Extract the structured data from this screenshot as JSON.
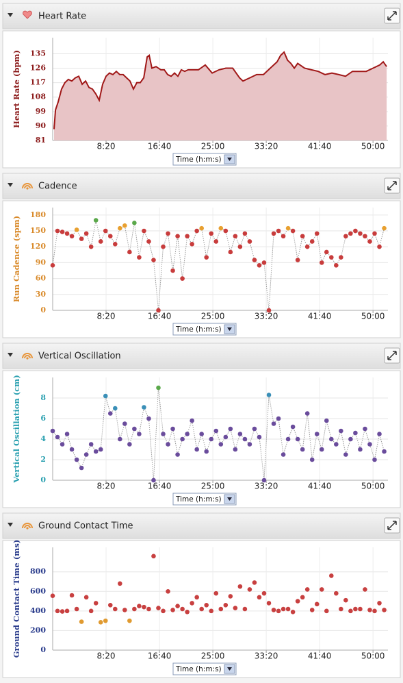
{
  "chart_data": [
    {
      "type": "area",
      "title": "Heart Rate",
      "ylabel": "Heart Rate (bpm)",
      "xlabel": "Time (h:m:s)",
      "axis_color": "#8b1a1a",
      "color": "#a01818",
      "fill_color": "#e8c4c6",
      "x": [
        13,
        26,
        51,
        83,
        115,
        147,
        179,
        212,
        244,
        276,
        308,
        340,
        372,
        404,
        436,
        468,
        500,
        532,
        564,
        596,
        628,
        660,
        692,
        724,
        756,
        788,
        820,
        853,
        885,
        904,
        929,
        968,
        1013,
        1045,
        1077,
        1109,
        1141,
        1173,
        1205,
        1237,
        1269,
        1301,
        1365,
        1429,
        1494,
        1558,
        1622,
        1686,
        1750,
        1782,
        1846,
        1910,
        1974,
        2038,
        2102,
        2135,
        2167,
        2199,
        2231,
        2263,
        2295,
        2359,
        2423,
        2487,
        2551,
        2615,
        2679,
        2743,
        2808,
        2872,
        2936,
        3000,
        3064,
        3096,
        3128
      ],
      "values": [
        88,
        100,
        105,
        113,
        117,
        119,
        118,
        120,
        121,
        116,
        118,
        114,
        113,
        110,
        106,
        116,
        121,
        123,
        122,
        124,
        122,
        122,
        120,
        118,
        113,
        117,
        117,
        120,
        133,
        134,
        126,
        127,
        125,
        125,
        122,
        121,
        123,
        121,
        125,
        124,
        125,
        125,
        125,
        128,
        123,
        125,
        126,
        126,
        120,
        118,
        120,
        122,
        122,
        126,
        130,
        134,
        136,
        131,
        129,
        126,
        129,
        126,
        125,
        124,
        122,
        123,
        122,
        121,
        124,
        124,
        124,
        126,
        128,
        130,
        127
      ],
      "xlim": [
        0,
        3140
      ],
      "ylim": [
        81,
        145
      ],
      "xticks": [
        {
          "value": 500,
          "label": "8:20"
        },
        {
          "value": 1000,
          "label": "16:40"
        },
        {
          "value": 1500,
          "label": "25:00"
        },
        {
          "value": 2000,
          "label": "33:20"
        },
        {
          "value": 2500,
          "label": "41:40"
        },
        {
          "value": 3000,
          "label": "50:00"
        }
      ],
      "yticks": [
        81,
        90,
        99,
        108,
        117,
        126,
        135
      ],
      "grid": true
    },
    {
      "type": "scatter",
      "connect": true,
      "title": "Cadence",
      "ylabel": "Run Cadence (spm)",
      "xlabel": "Time (h:m:s)",
      "axis_color": "#d98a2a",
      "x": [
        0,
        45,
        90,
        135,
        180,
        225,
        270,
        315,
        360,
        405,
        450,
        495,
        540,
        585,
        630,
        675,
        720,
        765,
        810,
        855,
        900,
        945,
        990,
        1035,
        1080,
        1125,
        1170,
        1215,
        1260,
        1305,
        1350,
        1395,
        1440,
        1485,
        1530,
        1575,
        1620,
        1665,
        1710,
        1755,
        1800,
        1845,
        1890,
        1935,
        1980,
        2025,
        2070,
        2115,
        2160,
        2205,
        2250,
        2295,
        2340,
        2385,
        2430,
        2475,
        2520,
        2565,
        2610,
        2655,
        2700,
        2745,
        2790,
        2835,
        2880,
        2925,
        2970,
        3015,
        3060,
        3105
      ],
      "values": [
        85,
        150,
        148,
        145,
        140,
        152,
        135,
        145,
        120,
        170,
        130,
        150,
        140,
        125,
        155,
        160,
        110,
        165,
        100,
        150,
        130,
        95,
        0,
        120,
        145,
        75,
        140,
        60,
        140,
        125,
        150,
        155,
        100,
        145,
        130,
        155,
        150,
        110,
        140,
        120,
        145,
        130,
        95,
        85,
        90,
        0,
        145,
        150,
        140,
        155,
        150,
        95,
        140,
        120,
        130,
        145,
        90,
        110,
        100,
        85,
        100,
        140,
        145,
        150,
        145,
        140,
        130,
        145,
        120,
        155
      ],
      "colors": [
        "#c83c3c",
        "#c83c3c",
        "#c83c3c",
        "#c83c3c",
        "#c83c3c",
        "#e8a030",
        "#c83c3c",
        "#c83c3c",
        "#c83c3c",
        "#5aa84a",
        "#c83c3c",
        "#c83c3c",
        "#c83c3c",
        "#c83c3c",
        "#e8a030",
        "#e8a030",
        "#c83c3c",
        "#5aa84a",
        "#c83c3c",
        "#c83c3c",
        "#c83c3c",
        "#c83c3c",
        "#c83c3c",
        "#c83c3c",
        "#c83c3c",
        "#c83c3c",
        "#c83c3c",
        "#c83c3c",
        "#c83c3c",
        "#c83c3c",
        "#c83c3c",
        "#e8a030",
        "#c83c3c",
        "#c83c3c",
        "#c83c3c",
        "#e8a030",
        "#c83c3c",
        "#c83c3c",
        "#c83c3c",
        "#c83c3c",
        "#c83c3c",
        "#c83c3c",
        "#c83c3c",
        "#c83c3c",
        "#c83c3c",
        "#c83c3c",
        "#c83c3c",
        "#c83c3c",
        "#c83c3c",
        "#e8a030",
        "#c83c3c",
        "#c83c3c",
        "#c83c3c",
        "#c83c3c",
        "#c83c3c",
        "#c83c3c",
        "#c83c3c",
        "#c83c3c",
        "#c83c3c",
        "#c83c3c",
        "#c83c3c",
        "#c83c3c",
        "#c83c3c",
        "#c83c3c",
        "#c83c3c",
        "#c83c3c",
        "#c83c3c",
        "#c83c3c",
        "#c83c3c",
        "#e8a030"
      ],
      "xlim": [
        0,
        3140
      ],
      "ylim": [
        0,
        194
      ],
      "xticks": [
        {
          "value": 500,
          "label": "8:20"
        },
        {
          "value": 1000,
          "label": "16:40"
        },
        {
          "value": 1500,
          "label": "25:00"
        },
        {
          "value": 2000,
          "label": "33:20"
        },
        {
          "value": 2500,
          "label": "41:40"
        },
        {
          "value": 3000,
          "label": "50:00"
        }
      ],
      "yticks": [
        0,
        30,
        60,
        90,
        120,
        150,
        180
      ],
      "grid": true
    },
    {
      "type": "scatter",
      "connect": true,
      "title": "Vertical Oscillation",
      "ylabel": "Vertical Oscillation (cm)",
      "xlabel": "Time (h:m:s)",
      "axis_color": "#2aa0b0",
      "x": [
        0,
        45,
        90,
        135,
        180,
        225,
        270,
        315,
        360,
        405,
        450,
        495,
        540,
        585,
        630,
        675,
        720,
        765,
        810,
        855,
        900,
        945,
        990,
        1035,
        1080,
        1125,
        1170,
        1215,
        1260,
        1305,
        1350,
        1395,
        1440,
        1485,
        1530,
        1575,
        1620,
        1665,
        1710,
        1755,
        1800,
        1845,
        1890,
        1935,
        1980,
        2025,
        2070,
        2115,
        2160,
        2205,
        2250,
        2295,
        2340,
        2385,
        2430,
        2475,
        2520,
        2565,
        2610,
        2655,
        2700,
        2745,
        2790,
        2835,
        2880,
        2925,
        2970,
        3015,
        3060,
        3105
      ],
      "values": [
        4.8,
        4.2,
        3.5,
        4.5,
        3.0,
        2.0,
        1.2,
        2.5,
        3.5,
        2.8,
        3.0,
        8.2,
        6.5,
        7.0,
        4.0,
        5.5,
        3.5,
        5.0,
        4.5,
        7.1,
        6.0,
        0,
        9.0,
        4.5,
        3.5,
        5.0,
        2.5,
        4.0,
        4.5,
        5.8,
        3.0,
        4.5,
        2.8,
        4.0,
        4.8,
        3.5,
        4.2,
        5.0,
        3.0,
        4.5,
        4.0,
        3.5,
        5.0,
        4.2,
        0,
        8.3,
        5.5,
        6.0,
        2.5,
        4.0,
        5.2,
        4.0,
        3.0,
        6.5,
        2.0,
        4.5,
        3.0,
        5.8,
        4.0,
        3.5,
        4.8,
        2.5,
        4.0,
        4.6,
        3.0,
        5.0,
        3.5,
        2.0,
        4.5,
        2.8
      ],
      "colors": [
        "#6a4c9c",
        "#6a4c9c",
        "#6a4c9c",
        "#6a4c9c",
        "#6a4c9c",
        "#6a4c9c",
        "#6a4c9c",
        "#6a4c9c",
        "#6a4c9c",
        "#6a4c9c",
        "#6a4c9c",
        "#3a8fb7",
        "#6a4c9c",
        "#3a8fb7",
        "#6a4c9c",
        "#6a4c9c",
        "#6a4c9c",
        "#6a4c9c",
        "#6a4c9c",
        "#3a8fb7",
        "#6a4c9c",
        "#6a4c9c",
        "#5aa84a",
        "#6a4c9c",
        "#6a4c9c",
        "#6a4c9c",
        "#6a4c9c",
        "#6a4c9c",
        "#6a4c9c",
        "#6a4c9c",
        "#6a4c9c",
        "#6a4c9c",
        "#6a4c9c",
        "#6a4c9c",
        "#6a4c9c",
        "#6a4c9c",
        "#6a4c9c",
        "#6a4c9c",
        "#6a4c9c",
        "#6a4c9c",
        "#6a4c9c",
        "#6a4c9c",
        "#6a4c9c",
        "#6a4c9c",
        "#6a4c9c",
        "#3a8fb7",
        "#6a4c9c",
        "#6a4c9c",
        "#6a4c9c",
        "#6a4c9c",
        "#6a4c9c",
        "#6a4c9c",
        "#6a4c9c",
        "#6a4c9c",
        "#6a4c9c",
        "#6a4c9c",
        "#6a4c9c",
        "#6a4c9c",
        "#6a4c9c",
        "#6a4c9c",
        "#6a4c9c",
        "#6a4c9c",
        "#6a4c9c",
        "#6a4c9c",
        "#6a4c9c",
        "#6a4c9c",
        "#6a4c9c",
        "#6a4c9c",
        "#6a4c9c",
        "#6a4c9c"
      ],
      "xlim": [
        0,
        3140
      ],
      "ylim": [
        0,
        10
      ],
      "xticks": [
        {
          "value": 500,
          "label": "8:20"
        },
        {
          "value": 1000,
          "label": "16:40"
        },
        {
          "value": 1500,
          "label": "25:00"
        },
        {
          "value": 2000,
          "label": "33:20"
        },
        {
          "value": 2500,
          "label": "41:40"
        },
        {
          "value": 3000,
          "label": "50:00"
        }
      ],
      "yticks": [
        0,
        2,
        4,
        6,
        8
      ],
      "grid": true
    },
    {
      "type": "scatter",
      "connect": false,
      "title": "Ground Contact Time",
      "ylabel": "Ground Contact Time (ms)",
      "xlabel": "Time (h:m:s)",
      "axis_color": "#2a3c8c",
      "x": [
        0,
        45,
        90,
        135,
        180,
        225,
        270,
        315,
        360,
        405,
        450,
        495,
        540,
        585,
        630,
        675,
        720,
        765,
        810,
        855,
        900,
        945,
        990,
        1035,
        1080,
        1125,
        1170,
        1215,
        1260,
        1305,
        1350,
        1395,
        1440,
        1485,
        1530,
        1575,
        1620,
        1665,
        1710,
        1755,
        1800,
        1845,
        1890,
        1935,
        1980,
        2025,
        2070,
        2115,
        2160,
        2205,
        2250,
        2295,
        2340,
        2385,
        2430,
        2475,
        2520,
        2565,
        2610,
        2655,
        2700,
        2745,
        2790,
        2835,
        2880,
        2925,
        2970,
        3015,
        3060,
        3105
      ],
      "values": [
        555,
        400,
        395,
        400,
        560,
        420,
        290,
        540,
        400,
        480,
        285,
        300,
        460,
        420,
        680,
        410,
        300,
        420,
        450,
        440,
        420,
        960,
        430,
        400,
        600,
        410,
        450,
        420,
        390,
        480,
        540,
        420,
        460,
        400,
        580,
        420,
        460,
        550,
        430,
        650,
        420,
        620,
        690,
        540,
        580,
        480,
        410,
        400,
        420,
        420,
        390,
        500,
        540,
        620,
        410,
        470,
        620,
        400,
        760,
        580,
        420,
        510,
        400,
        420,
        420,
        620,
        410,
        400,
        480,
        410
      ],
      "colors": [
        "#c84040",
        "#c84040",
        "#c84040",
        "#c84040",
        "#c84040",
        "#c84040",
        "#e09a30",
        "#c84040",
        "#c84040",
        "#c84040",
        "#e09a30",
        "#e09a30",
        "#c84040",
        "#c84040",
        "#c84040",
        "#c84040",
        "#e09a30",
        "#c84040",
        "#c84040",
        "#c84040",
        "#c84040",
        "#c84040",
        "#c84040",
        "#c84040",
        "#c84040",
        "#c84040",
        "#c84040",
        "#c84040",
        "#c84040",
        "#c84040",
        "#c84040",
        "#c84040",
        "#c84040",
        "#c84040",
        "#c84040",
        "#c84040",
        "#c84040",
        "#c84040",
        "#c84040",
        "#c84040",
        "#c84040",
        "#c84040",
        "#c84040",
        "#c84040",
        "#c84040",
        "#c84040",
        "#c84040",
        "#c84040",
        "#c84040",
        "#c84040",
        "#c84040",
        "#c84040",
        "#c84040",
        "#c84040",
        "#c84040",
        "#c84040",
        "#c84040",
        "#c84040",
        "#c84040",
        "#c84040",
        "#c84040",
        "#c84040",
        "#c84040",
        "#c84040",
        "#c84040",
        "#c84040",
        "#c84040",
        "#c84040",
        "#c84040",
        "#c84040"
      ],
      "xlim": [
        0,
        3140
      ],
      "ylim": [
        0,
        1050
      ],
      "xticks": [
        {
          "value": 500,
          "label": "8:20"
        },
        {
          "value": 1000,
          "label": "16:40"
        },
        {
          "value": 1500,
          "label": "25:00"
        },
        {
          "value": 2000,
          "label": "33:20"
        },
        {
          "value": 2500,
          "label": "41:40"
        },
        {
          "value": 3000,
          "label": "50:00"
        }
      ],
      "yticks": [
        0,
        200,
        400,
        600,
        800
      ],
      "grid": true
    }
  ]
}
